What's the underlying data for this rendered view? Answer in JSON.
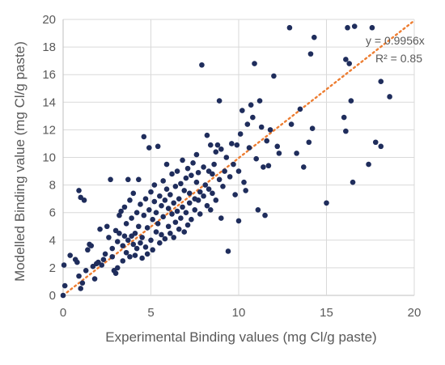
{
  "chart_data": {
    "type": "scatter",
    "title": "",
    "xlabel": "Experimental Binding values (mg Cl/g paste)",
    "ylabel": "Modelled Binding value (mg Cl/g paste)",
    "xlim": [
      0,
      20
    ],
    "ylim": [
      0,
      20
    ],
    "x_ticks": [
      "0",
      "5",
      "10",
      "15",
      "20"
    ],
    "y_ticks": [
      "0",
      "2",
      "4",
      "6",
      "8",
      "10",
      "12",
      "14",
      "16",
      "18",
      "20"
    ],
    "grid": true,
    "legend": "none",
    "colors": {
      "points": "#1f2d5c",
      "trendline": "#ed7d31",
      "grid": "#d9d9d9",
      "axis": "#bfbfbf",
      "text": "#595959"
    },
    "trendline": {
      "slope": 0.9956,
      "style": "dotted"
    },
    "annotations": {
      "equation": "y = 0.9956x",
      "r2": "R² = 0.85"
    },
    "series": [
      {
        "points": [
          [
            0.0,
            0.0
          ],
          [
            0.1,
            0.7
          ],
          [
            0.05,
            2.2
          ],
          [
            0.4,
            2.9
          ],
          [
            0.7,
            2.6
          ],
          [
            0.8,
            2.4
          ],
          [
            0.9,
            1.4
          ],
          [
            1.0,
            0.5
          ],
          [
            1.0,
            7.1
          ],
          [
            0.9,
            7.6
          ],
          [
            1.2,
            6.9
          ],
          [
            1.1,
            0.9
          ],
          [
            1.3,
            1.8
          ],
          [
            1.4,
            3.3
          ],
          [
            1.5,
            3.7
          ],
          [
            1.6,
            3.6
          ],
          [
            1.7,
            2.1
          ],
          [
            1.8,
            1.2
          ],
          [
            1.9,
            2.3
          ],
          [
            2.0,
            2.4
          ],
          [
            2.1,
            4.8
          ],
          [
            2.2,
            2.2
          ],
          [
            2.3,
            2.6
          ],
          [
            2.4,
            3.0
          ],
          [
            2.5,
            5.0
          ],
          [
            2.6,
            4.2
          ],
          [
            2.7,
            8.4
          ],
          [
            2.8,
            3.4
          ],
          [
            2.8,
            2.8
          ],
          [
            2.9,
            1.8
          ],
          [
            3.0,
            1.6
          ],
          [
            3.0,
            4.7
          ],
          [
            3.1,
            3.9
          ],
          [
            3.1,
            2.0
          ],
          [
            3.2,
            4.5
          ],
          [
            3.2,
            5.8
          ],
          [
            3.3,
            6.1
          ],
          [
            3.4,
            3.6
          ],
          [
            3.4,
            2.5
          ],
          [
            3.5,
            4.3
          ],
          [
            3.5,
            6.4
          ],
          [
            3.6,
            3.1
          ],
          [
            3.6,
            5.2
          ],
          [
            3.7,
            8.4
          ],
          [
            3.7,
            4.0
          ],
          [
            3.8,
            6.9
          ],
          [
            3.8,
            2.8
          ],
          [
            3.9,
            4.3
          ],
          [
            3.9,
            5.6
          ],
          [
            4.0,
            3.7
          ],
          [
            4.0,
            7.4
          ],
          [
            4.1,
            4.5
          ],
          [
            4.1,
            2.9
          ],
          [
            4.2,
            6.0
          ],
          [
            4.2,
            3.4
          ],
          [
            4.3,
            5.0
          ],
          [
            4.3,
            8.4
          ],
          [
            4.4,
            3.8
          ],
          [
            4.4,
            6.6
          ],
          [
            4.5,
            4.2
          ],
          [
            4.5,
            2.7
          ],
          [
            4.6,
            11.5
          ],
          [
            4.6,
            5.8
          ],
          [
            4.7,
            3.5
          ],
          [
            4.7,
            7.0
          ],
          [
            4.8,
            4.9
          ],
          [
            4.8,
            3.0
          ],
          [
            4.9,
            6.2
          ],
          [
            4.9,
            10.7
          ],
          [
            5.0,
            4.0
          ],
          [
            5.0,
            7.5
          ],
          [
            5.1,
            5.5
          ],
          [
            5.1,
            3.3
          ],
          [
            5.2,
            6.8
          ],
          [
            5.2,
            8.0
          ],
          [
            5.3,
            4.6
          ],
          [
            5.3,
            6.0
          ],
          [
            5.4,
            5.2
          ],
          [
            5.4,
            10.8
          ],
          [
            5.5,
            7.2
          ],
          [
            5.5,
            3.8
          ],
          [
            5.6,
            6.5
          ],
          [
            5.6,
            4.4
          ],
          [
            5.7,
            8.3
          ],
          [
            5.7,
            5.7
          ],
          [
            5.8,
            6.9
          ],
          [
            5.8,
            4.1
          ],
          [
            5.9,
            7.7
          ],
          [
            5.9,
            9.5
          ],
          [
            6.0,
            5.0
          ],
          [
            6.0,
            6.3
          ],
          [
            6.1,
            4.5
          ],
          [
            6.1,
            7.3
          ],
          [
            6.2,
            5.9
          ],
          [
            6.2,
            8.8
          ],
          [
            6.3,
            4.2
          ],
          [
            6.3,
            6.7
          ],
          [
            6.4,
            7.9
          ],
          [
            6.4,
            5.3
          ],
          [
            6.5,
            6.1
          ],
          [
            6.5,
            9.0
          ],
          [
            6.6,
            4.8
          ],
          [
            6.6,
            7.0
          ],
          [
            6.7,
            8.1
          ],
          [
            6.7,
            5.6
          ],
          [
            6.8,
            9.8
          ],
          [
            6.8,
            6.4
          ],
          [
            6.9,
            7.6
          ],
          [
            6.9,
            4.6
          ],
          [
            7.0,
            8.5
          ],
          [
            7.0,
            6.0
          ],
          [
            7.1,
            9.2
          ],
          [
            7.1,
            5.1
          ],
          [
            7.2,
            7.4
          ],
          [
            7.2,
            6.7
          ],
          [
            7.3,
            8.7
          ],
          [
            7.3,
            5.5
          ],
          [
            7.4,
            9.6
          ],
          [
            7.5,
            7.0
          ],
          [
            7.5,
            6.2
          ],
          [
            7.6,
            8.2
          ],
          [
            7.6,
            10.2
          ],
          [
            7.7,
            6.9
          ],
          [
            7.7,
            8.9
          ],
          [
            7.8,
            7.5
          ],
          [
            7.8,
            5.9
          ],
          [
            7.9,
            16.7
          ],
          [
            8.0,
            9.3
          ],
          [
            8.0,
            7.2
          ],
          [
            8.1,
            8.0
          ],
          [
            8.2,
            11.6
          ],
          [
            8.2,
            6.5
          ],
          [
            8.3,
            9.0
          ],
          [
            8.3,
            7.7
          ],
          [
            8.4,
            10.9
          ],
          [
            8.4,
            6.2
          ],
          [
            8.5,
            8.8
          ],
          [
            8.5,
            7.4
          ],
          [
            8.6,
            9.5
          ],
          [
            8.7,
            10.4
          ],
          [
            8.7,
            6.9
          ],
          [
            8.8,
            10.9
          ],
          [
            8.9,
            14.1
          ],
          [
            8.9,
            8.4
          ],
          [
            9.0,
            10.6
          ],
          [
            9.0,
            5.6
          ],
          [
            9.1,
            7.9
          ],
          [
            9.2,
            9.0
          ],
          [
            9.3,
            10.0
          ],
          [
            9.4,
            3.2
          ],
          [
            9.5,
            8.6
          ],
          [
            9.6,
            11.0
          ],
          [
            9.7,
            9.5
          ],
          [
            9.8,
            7.3
          ],
          [
            9.9,
            10.9
          ],
          [
            10.0,
            5.4
          ],
          [
            10.0,
            9.0
          ],
          [
            10.1,
            11.7
          ],
          [
            10.2,
            13.4
          ],
          [
            10.3,
            8.2
          ],
          [
            10.4,
            7.6
          ],
          [
            10.5,
            12.4
          ],
          [
            10.6,
            10.7
          ],
          [
            10.7,
            13.8
          ],
          [
            10.8,
            12.9
          ],
          [
            10.9,
            16.8
          ],
          [
            11.0,
            9.9
          ],
          [
            11.1,
            6.2
          ],
          [
            11.2,
            14.1
          ],
          [
            11.3,
            12.2
          ],
          [
            11.4,
            9.3
          ],
          [
            11.5,
            5.8
          ],
          [
            11.6,
            11.2
          ],
          [
            11.7,
            9.4
          ],
          [
            11.8,
            12.0
          ],
          [
            12.0,
            15.9
          ],
          [
            12.2,
            10.8
          ],
          [
            12.3,
            10.3
          ],
          [
            12.9,
            19.4
          ],
          [
            13.0,
            12.4
          ],
          [
            13.3,
            10.3
          ],
          [
            13.5,
            13.5
          ],
          [
            13.7,
            9.3
          ],
          [
            14.0,
            11.1
          ],
          [
            14.1,
            17.5
          ],
          [
            14.2,
            12.1
          ],
          [
            14.3,
            18.7
          ],
          [
            15.0,
            6.7
          ],
          [
            16.0,
            12.9
          ],
          [
            16.1,
            11.9
          ],
          [
            16.1,
            17.1
          ],
          [
            16.2,
            19.4
          ],
          [
            16.3,
            16.8
          ],
          [
            16.4,
            14.1
          ],
          [
            16.5,
            8.2
          ],
          [
            16.6,
            19.5
          ],
          [
            17.4,
            9.5
          ],
          [
            17.6,
            19.4
          ],
          [
            17.8,
            11.1
          ],
          [
            18.1,
            10.8
          ],
          [
            18.1,
            15.5
          ],
          [
            18.6,
            14.4
          ]
        ]
      }
    ]
  }
}
